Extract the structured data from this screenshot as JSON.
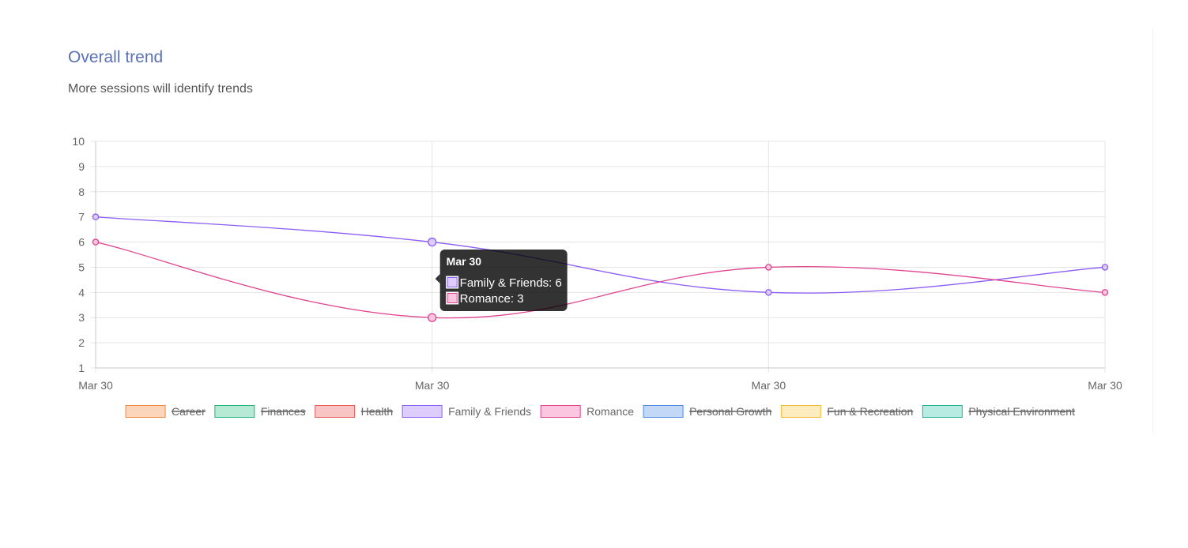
{
  "card": {
    "title": "Overall trend",
    "subtitle": "More sessions will identify trends"
  },
  "chart_data": {
    "type": "line",
    "categories": [
      "Mar 30",
      "Mar 30",
      "Mar 30",
      "Mar 30"
    ],
    "y_ticks": [
      "1",
      "2",
      "3",
      "4",
      "5",
      "6",
      "7",
      "8",
      "9",
      "10"
    ],
    "ylim": [
      1,
      10
    ],
    "grid": true,
    "legend_position": "bottom",
    "series": [
      {
        "name": "Family & Friends",
        "values": [
          7,
          6,
          4,
          5
        ],
        "color": "#8b5cf6"
      },
      {
        "name": "Romance",
        "values": [
          6,
          3,
          5,
          4
        ],
        "color": "#e0438f"
      }
    ],
    "legend": [
      {
        "label": "Career",
        "hidden": true,
        "stroke": "#f0883e",
        "fill": "#fcd5bb"
      },
      {
        "label": "Finances",
        "hidden": true,
        "stroke": "#22b07d",
        "fill": "#b6ead5"
      },
      {
        "label": "Health",
        "hidden": true,
        "stroke": "#e35b5b",
        "fill": "#f9c4c4"
      },
      {
        "label": "Family & Friends",
        "hidden": false,
        "stroke": "#8b5cf6",
        "fill": "#dccdfc"
      },
      {
        "label": "Romance",
        "hidden": false,
        "stroke": "#e0438f",
        "fill": "#fbc6df"
      },
      {
        "label": "Personal Growth",
        "hidden": true,
        "stroke": "#4e89e6",
        "fill": "#c3d8f7"
      },
      {
        "label": "Fun & Recreation",
        "hidden": true,
        "stroke": "#f5b93a",
        "fill": "#fdecbd"
      },
      {
        "label": "Physical Environment",
        "hidden": true,
        "stroke": "#25ad9a",
        "fill": "#b8ece3"
      }
    ],
    "tooltip": {
      "title": "Mar 30",
      "active_index": 1,
      "items": [
        {
          "label": "Family & Friends: 6",
          "stroke": "#8b5cf6",
          "fill": "#dccdfc"
        },
        {
          "label": "Romance: 3",
          "stroke": "#e0438f",
          "fill": "#fbc6df"
        }
      ]
    }
  }
}
